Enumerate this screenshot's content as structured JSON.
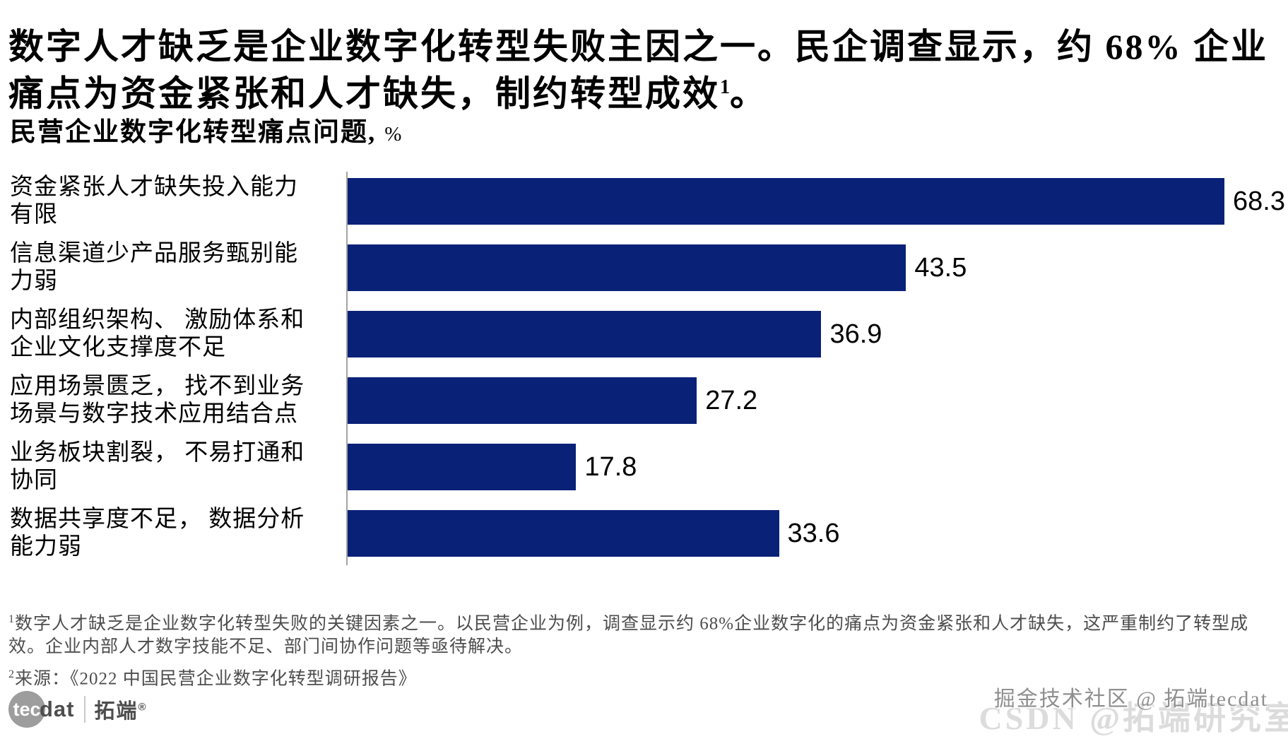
{
  "title": {
    "text": "数字人才缺乏是企业数字化转型失败主因之一。民企调查显示，约 68% 企业痛点为资金紧张和人才缺失，制约转型成效",
    "sup": "1",
    "suffix": "。"
  },
  "chart_data": {
    "type": "bar",
    "orientation": "horizontal",
    "title": "民营企业数字化转型痛点问题,",
    "unit": "%",
    "categories": [
      [
        "资金紧张人才缺失投入能力",
        "有限"
      ],
      [
        "信息渠道少产品服务甄别能",
        "力弱"
      ],
      [
        "内部组织架构、 激励体系和",
        "企业文化支撑度不足"
      ],
      [
        "应用场景匮乏， 找不到业务",
        "场景与数字技术应用结合点"
      ],
      [
        "业务板块割裂， 不易打通和",
        "协同"
      ],
      [
        "数据共享度不足， 数据分析",
        "能力弱"
      ]
    ],
    "values": [
      68.3,
      43.5,
      36.9,
      27.2,
      17.8,
      33.6
    ],
    "value_labels": [
      "68.3",
      "43.5",
      "36.9",
      "27.2",
      "17.8",
      "33.6"
    ],
    "bar_color": "#0A2178",
    "axis_color": "#a3a3a3",
    "xlim": [
      0,
      73
    ],
    "grid": false,
    "legend": false,
    "value_label_position": "right-of-bar"
  },
  "footnotes": [
    {
      "sup": "1",
      "text": "数字人才缺乏是企业数字化转型失败的关键因素之一。以民营企业为例，调查显示约 68%企业数字化的痛点为资金紧张和人才缺失，这严重制约了转型成效。企业内部人才数字技能不足、部门间协作问题等亟待解决。"
    },
    {
      "sup": "2",
      "text": "来源：《2022 中国民营企业数字化转型调研报告》"
    }
  ],
  "branding": {
    "logo_tec": "tec",
    "logo_dat": "dat",
    "logo_cn": "拓端",
    "logo_reg": "®"
  },
  "watermarks": {
    "front": "掘金技术社区 @ 拓端tecdat",
    "back": "CSDN @拓端研究室"
  }
}
